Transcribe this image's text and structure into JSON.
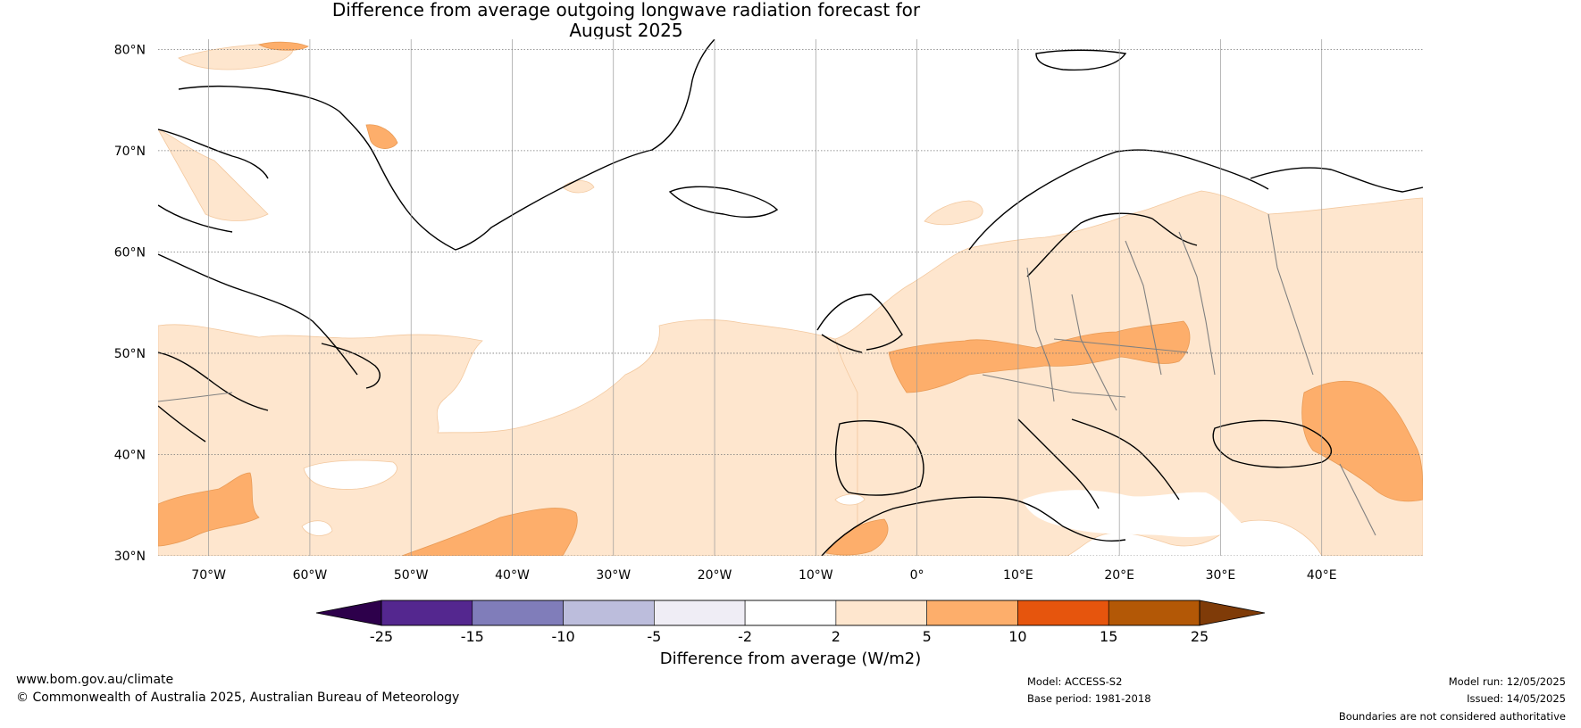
{
  "title": {
    "line1": "Difference from average outgoing longwave radiation forecast for",
    "line2": "August 2025"
  },
  "map": {
    "lat_labels": [
      "80°N",
      "70°N",
      "60°N",
      "50°N",
      "40°N",
      "30°N"
    ],
    "lat_values": [
      80,
      70,
      60,
      50,
      40,
      30
    ],
    "lon_labels": [
      "70°W",
      "60°W",
      "50°W",
      "40°W",
      "30°W",
      "20°W",
      "10°W",
      "0°",
      "10°E",
      "20°E",
      "30°E",
      "40°E"
    ],
    "lon_values": [
      -70,
      -60,
      -50,
      -40,
      -30,
      -20,
      -10,
      0,
      10,
      20,
      30,
      40
    ],
    "extent": {
      "lon_min": -75,
      "lon_max": 50,
      "lat_min": 30,
      "lat_max": 81
    }
  },
  "colorbar": {
    "ticks": [
      "-25",
      "-15",
      "-10",
      "-5",
      "-2",
      "2",
      "5",
      "10",
      "15",
      "25"
    ],
    "colors": [
      "#54278f",
      "#807dba",
      "#bcbddc",
      "#efedf5",
      "#ffffff",
      "#fee6ce",
      "#fdae6b",
      "#e6550d",
      "#b35806"
    ],
    "under_color": "#2d004b",
    "over_color": "#7f3b08",
    "label": "Difference from average (W/m2)"
  },
  "footer": {
    "website": "www.bom.gov.au/climate",
    "copyright": "© Commonwealth of Australia 2025, Australian Bureau of Meteorology",
    "model": "Model: ACCESS-S2",
    "base_period": "Base period: 1981-2018",
    "model_run": "Model run: 12/05/2025",
    "issued": "Issued: 14/05/2025",
    "disclaimer": "Boundaries are not considered authoritative"
  }
}
